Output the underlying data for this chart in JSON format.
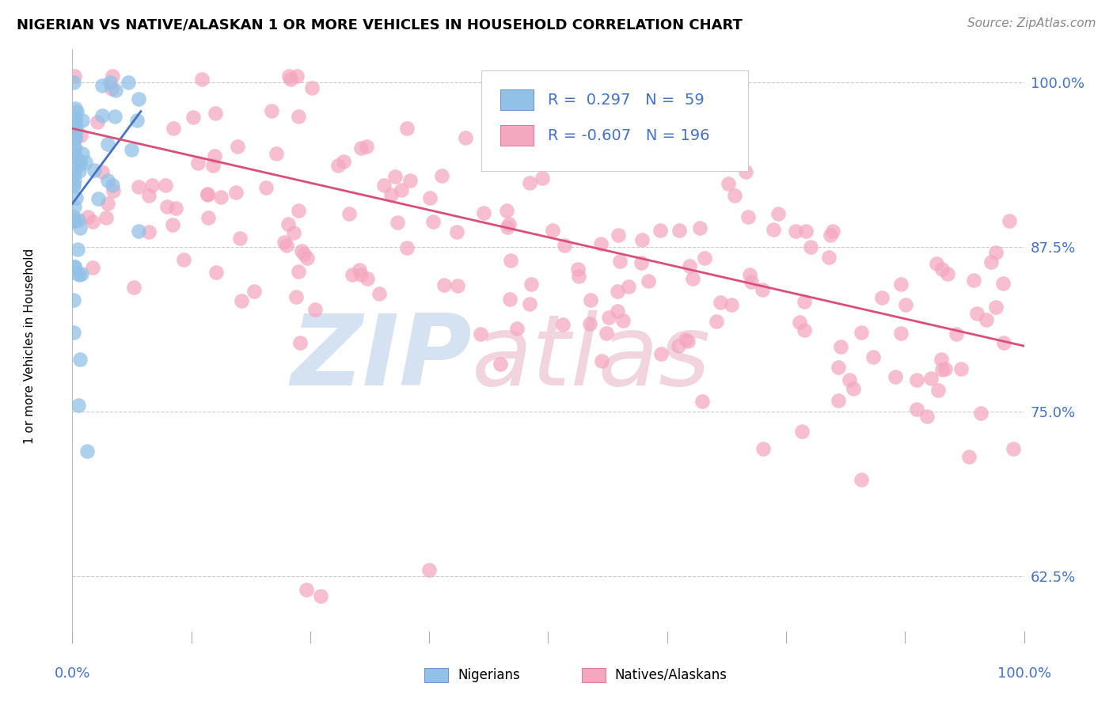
{
  "title": "NIGERIAN VS NATIVE/ALASKAN 1 OR MORE VEHICLES IN HOUSEHOLD CORRELATION CHART",
  "source": "Source: ZipAtlas.com",
  "ylabel": "1 or more Vehicles in Household",
  "ytick_labels": [
    "100.0%",
    "87.5%",
    "75.0%",
    "62.5%"
  ],
  "ytick_values": [
    1.0,
    0.875,
    0.75,
    0.625
  ],
  "legend_nigerian_R": "0.297",
  "legend_nigerian_N": "59",
  "legend_native_R": "-0.607",
  "legend_native_N": "196",
  "nigerian_color": "#92c1e8",
  "native_color": "#f4a8c0",
  "nigerian_line_color": "#4472c4",
  "native_line_color": "#d94f7a",
  "watermark_zip_color": "#b8cfe8",
  "watermark_atlas_color": "#e8b8c8",
  "title_fontsize": 13,
  "source_fontsize": 11,
  "legend_fontsize": 14,
  "axis_label_color": "#4472c4",
  "ylabel_fontsize": 11,
  "xlim": [
    0.0,
    1.0
  ],
  "ylim": [
    0.575,
    1.025
  ],
  "nigerian_trend_x": [
    0.0,
    0.072
  ],
  "nigerian_trend_y": [
    0.908,
    0.978
  ],
  "native_trend_x": [
    0.0,
    1.0
  ],
  "native_trend_y": [
    0.965,
    0.8
  ]
}
